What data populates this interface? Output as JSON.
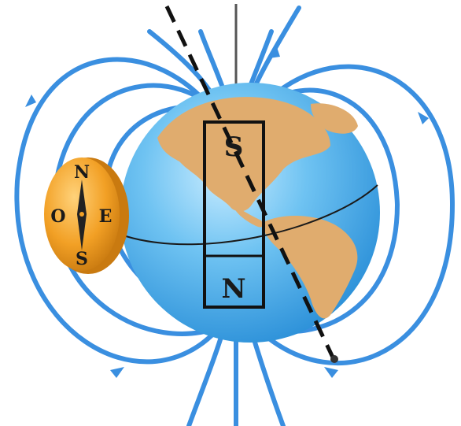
{
  "magnet": {
    "top_label": "S",
    "bottom_label": "N"
  },
  "compass": {
    "north": "N",
    "south": "S",
    "east": "E",
    "west": "O"
  },
  "colors": {
    "field_lines": "#3a8fe0",
    "ocean": "#5fb8ee",
    "land": "#e0ac6e",
    "compass_body": "#f2a025",
    "axis": "#1a1a1a"
  }
}
